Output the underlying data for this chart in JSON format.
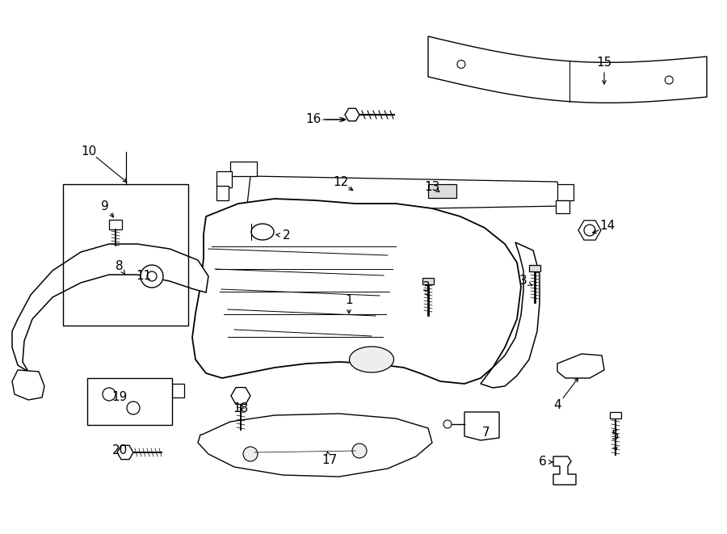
{
  "bg_color": "#ffffff",
  "line_color": "#000000",
  "lw": 1.0
}
